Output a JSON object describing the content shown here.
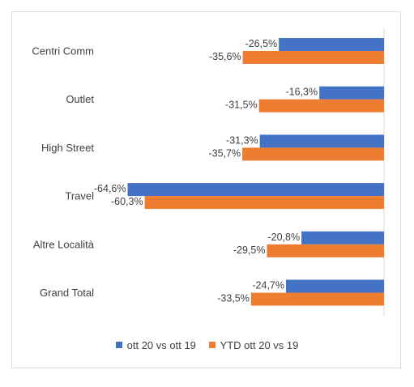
{
  "chart_data": {
    "type": "bar",
    "orientation": "horizontal",
    "categories": [
      "Centri Comm",
      "Outlet",
      "High Street",
      "Travel",
      "Altre Località",
      "Grand Total"
    ],
    "series": [
      {
        "name": "ott 20 vs ott 19",
        "color": "#4472c4",
        "values": [
          -26.5,
          -16.3,
          -31.3,
          -64.6,
          -20.8,
          -24.7
        ],
        "labels": [
          "-26,5%",
          "-16,3%",
          "-31,3%",
          "-64,6%",
          "-20,8%",
          "-24,7%"
        ]
      },
      {
        "name": "YTD ott 20 vs 19",
        "color": "#ed7d31",
        "values": [
          -35.6,
          -31.5,
          -35.7,
          -60.3,
          -29.5,
          -33.5
        ],
        "labels": [
          "-35,6%",
          "-31,5%",
          "-35,7%",
          "-60,3%",
          "-29,5%",
          "-33,5%"
        ]
      }
    ],
    "xlim": [
      -65,
      0
    ],
    "legend_position": "bottom",
    "grid": false
  }
}
